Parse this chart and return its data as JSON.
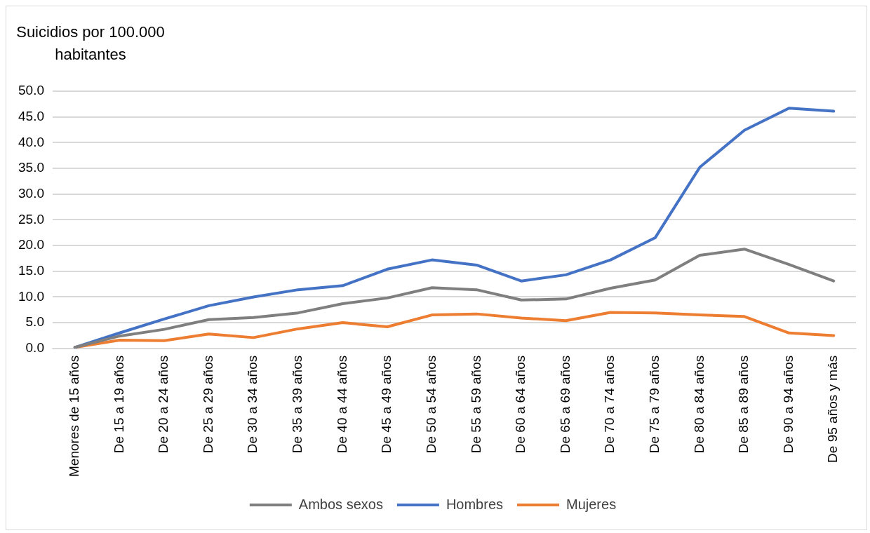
{
  "chart_data": {
    "type": "line",
    "ylabel": "Suicidios por 100.000 habitantes",
    "categories": [
      "Menores de 15 años",
      "De 15 a 19 años",
      "De 20 a 24 años",
      "De 25 a 29 años",
      "De 30 a 34 años",
      "De 35 a 39 años",
      "De 40 a 44 años",
      "De 45 a 49 años",
      "De 50 a 54 años",
      "De 55 a 59 años",
      "De 60 a 64 años",
      "De 65 a 69 años",
      "De 70 a 74 años",
      "De 75 a 79 años",
      "De 80 a 84 años",
      "De 85 a 89 años",
      "De 90 a 94 años",
      "De 95 años y más"
    ],
    "series": [
      {
        "name": "Ambos sexos",
        "color": "#7f7f7f",
        "values": [
          0.2,
          2.4,
          3.7,
          5.6,
          6.0,
          6.9,
          8.7,
          9.8,
          11.8,
          11.4,
          9.4,
          9.6,
          11.7,
          13.3,
          18.1,
          19.3,
          16.3,
          13.1
        ]
      },
      {
        "name": "Hombres",
        "color": "#4472c4",
        "values": [
          0.2,
          3.0,
          5.7,
          8.3,
          10.0,
          11.4,
          12.2,
          15.4,
          17.2,
          16.2,
          13.1,
          14.3,
          17.2,
          21.5,
          35.2,
          42.4,
          46.7,
          46.1
        ]
      },
      {
        "name": "Mujeres",
        "color": "#ed7d31",
        "values": [
          0.2,
          1.6,
          1.5,
          2.8,
          2.1,
          3.8,
          5.0,
          4.2,
          6.5,
          6.7,
          5.9,
          5.4,
          7.0,
          6.9,
          6.5,
          6.2,
          3.0,
          2.5
        ]
      }
    ],
    "ylim": [
      0,
      50
    ],
    "yticks": [
      {
        "value": 0,
        "label": "0.0"
      },
      {
        "value": 5,
        "label": "5.0"
      },
      {
        "value": 10,
        "label": "10.0"
      },
      {
        "value": 15,
        "label": "15.0"
      },
      {
        "value": 20,
        "label": "20.0"
      },
      {
        "value": 25,
        "label": "25.0"
      },
      {
        "value": 30,
        "label": "30.0"
      },
      {
        "value": 35,
        "label": "35.0"
      },
      {
        "value": 40,
        "label": "40.0"
      },
      {
        "value": 45,
        "label": "45.0"
      },
      {
        "value": 50,
        "label": "50.0"
      }
    ],
    "grid": "y",
    "legend": "bottom",
    "marker": "none",
    "line_style": "solid"
  }
}
